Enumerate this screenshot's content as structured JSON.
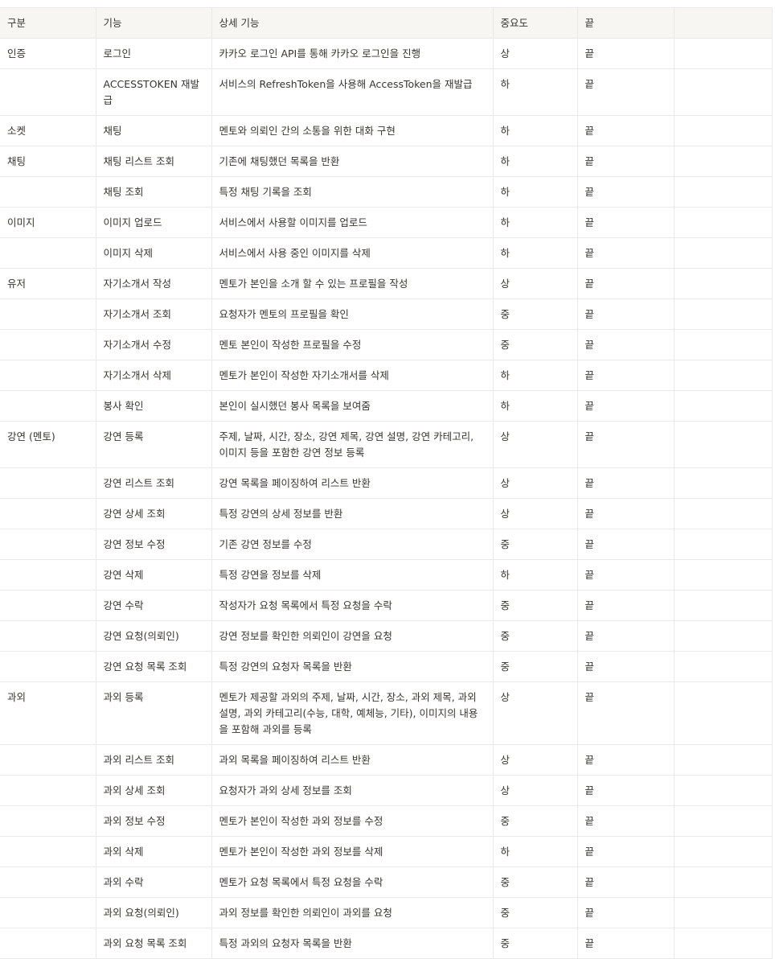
{
  "table": {
    "headers": [
      "구분",
      "기능",
      "상세 기능",
      "중요도",
      "끝",
      ""
    ],
    "rows": [
      [
        "인증",
        "로그인",
        "카카오 로그인 API를 통해 카카오 로그인을 진행",
        "상",
        "끝",
        ""
      ],
      [
        "",
        "ACCESSTOKEN 재발급",
        "서비스의 RefreshToken을 사용해 AccessToken을 재발급",
        "하",
        "끝",
        ""
      ],
      [
        "소켓",
        "채팅",
        "멘토와 의뢰인 간의 소통을 위한 대화 구현",
        "하",
        "끝",
        ""
      ],
      [
        "채팅",
        "채팅 리스트 조회",
        "기존에 채팅했던 목록을 반환",
        "하",
        "끝",
        ""
      ],
      [
        "",
        "채팅 조회",
        "특정 채팅 기록을 조회",
        "하",
        "끝",
        ""
      ],
      [
        "이미지",
        "이미지 업로드",
        "서비스에서 사용할 이미지를 업로드",
        "하",
        "끝",
        ""
      ],
      [
        "",
        "이미지 삭제",
        "서비스에서 사용 중인 이미지를 삭제",
        "하",
        "끝",
        ""
      ],
      [
        "유저",
        "자기소개서 작성",
        "멘토가 본인을 소개 할 수 있는 프로필을 작성",
        "상",
        "끝",
        ""
      ],
      [
        "",
        "자기소개서 조회",
        "요청자가 멘토의 프로필을 확인",
        "중",
        "끝",
        ""
      ],
      [
        "",
        "자기소개서 수정",
        "멘토 본인이 작성한 프로필을 수정",
        "중",
        "끝",
        ""
      ],
      [
        "",
        "자기소개서 삭제",
        "멘토가 본인이 작성한 자기소개서를 삭제",
        "하",
        "끝",
        ""
      ],
      [
        "",
        "봉사 확인",
        "본인이 실시했던 봉사 목록을 보여줌",
        "하",
        "끝",
        ""
      ],
      [
        "강연 (멘토)",
        "강연 등록",
        "주제, 날짜, 시간, 장소, 강연 제목, 강연 설명, 강연 카테고리, 이미지 등을 포함한 강연 정보 등록",
        "상",
        "끝",
        ""
      ],
      [
        "",
        "강연 리스트 조회",
        "강연 목록을 페이징하여 리스트 반환",
        "상",
        "끝",
        ""
      ],
      [
        "",
        "강연 상세 조회",
        "특정 강연의 상세 정보를 반환",
        "상",
        "끝",
        ""
      ],
      [
        "",
        "강연 정보 수정",
        "기존 강연 정보를 수정",
        "중",
        "끝",
        ""
      ],
      [
        "",
        "강연 삭제",
        "특정 강연을 정보를 삭제",
        "하",
        "끝",
        ""
      ],
      [
        "",
        "강연 수락",
        "작성자가 요청 목록에서 특정 요청을 수락",
        "중",
        "끝",
        ""
      ],
      [
        "",
        "강연 요청(의뢰인)",
        "강연 정보를 확인한 의뢰인이 강연을 요청",
        "중",
        "끝",
        ""
      ],
      [
        "",
        "강연 요청 목록 조회",
        "특정 강연의 요청자 목록을 반환",
        "중",
        "끝",
        ""
      ],
      [
        "과외",
        "과외 등록",
        "멘토가 제공할 과외의 주제, 날짜, 시간, 장소, 과외 제목, 과외 설명, 과외 카테고리(수능, 대학, 예체능, 기타), 이미지의 내용을 포함해 과외를 등록",
        "상",
        "끝",
        ""
      ],
      [
        "",
        "과외 리스트 조회",
        "과외 목록을 페이징하여 리스트 반환",
        "상",
        "끝",
        ""
      ],
      [
        "",
        "과외 상세 조회",
        "요청자가 과외 상세 정보를 조회",
        "상",
        "끝",
        ""
      ],
      [
        "",
        "과외 정보 수정",
        "멘토가 본인이 작성한 과외 정보를 수정",
        "중",
        "끝",
        ""
      ],
      [
        "",
        "과외 삭제",
        "멘토가 본인이 작성한 과외 정보를 삭제",
        "하",
        "끝",
        ""
      ],
      [
        "",
        "과외 수락",
        "멘토가 요청 목록에서 특정 요청을 수락",
        "중",
        "끝",
        ""
      ],
      [
        "",
        "과외 요청(의뢰인)",
        "과외 정보를 확인한 의뢰인이 과외를 요청",
        "중",
        "끝",
        ""
      ],
      [
        "",
        "과외 요청 목록 조회",
        "특정 과외의 요청자 목록을 반환",
        "중",
        "끝",
        ""
      ]
    ]
  }
}
